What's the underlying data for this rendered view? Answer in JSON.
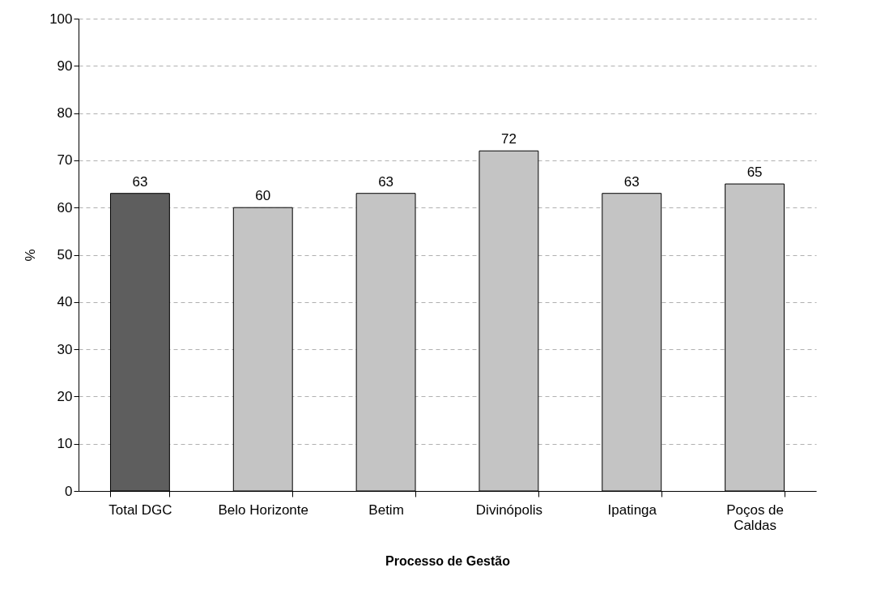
{
  "chart_data": {
    "type": "bar",
    "xlabel": "Processo de Gestão",
    "ylabel": "%",
    "categories": [
      "Total DGC",
      "Belo Horizonte",
      "Betim",
      "Divinópolis",
      "Ipatinga",
      "Poços de Caldas"
    ],
    "values": [
      63,
      60,
      63,
      72,
      63,
      65
    ],
    "colors": [
      "#5e5e5e",
      "#c4c4c4",
      "#c4c4c4",
      "#c4c4c4",
      "#c4c4c4",
      "#c4c4c4"
    ],
    "ylim": [
      0,
      100
    ],
    "yticks": [
      0,
      10,
      20,
      30,
      40,
      50,
      60,
      70,
      80,
      90,
      100
    ],
    "grid": "y",
    "data_labels": true
  }
}
